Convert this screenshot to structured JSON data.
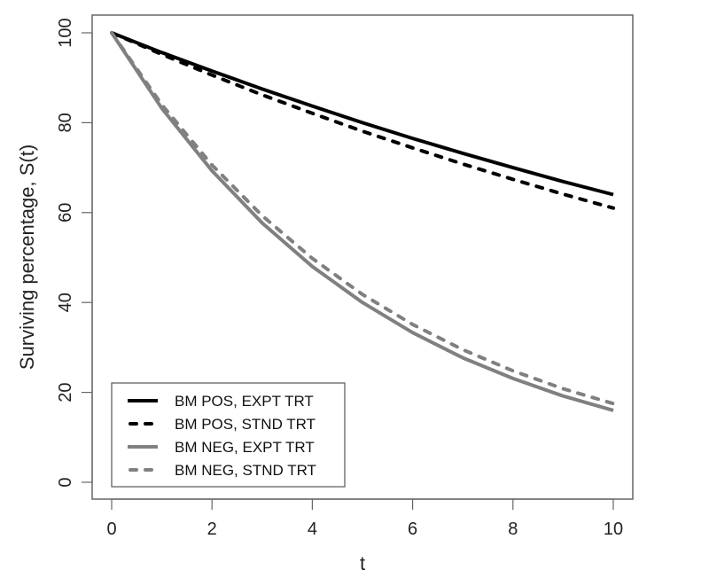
{
  "chart_data": {
    "type": "line",
    "title": "",
    "xlabel": "t",
    "ylabel": "Surviving percentage, S(t)",
    "xlim": [
      0,
      10
    ],
    "ylim": [
      0,
      100
    ],
    "x": [
      0,
      1,
      2,
      3,
      4,
      5,
      6,
      7,
      8,
      9,
      10
    ],
    "x_ticks": [
      0,
      2,
      4,
      6,
      8,
      10
    ],
    "y_ticks": [
      0,
      20,
      40,
      60,
      80,
      100
    ],
    "grid": false,
    "legend_position": "bottom-left",
    "series": [
      {
        "name": "BM POS, EXPT TRT",
        "color": "#000000",
        "dash": "solid",
        "values": [
          100,
          95.6,
          91.5,
          87.5,
          83.7,
          80.0,
          76.5,
          73.2,
          70.0,
          66.9,
          64.0
        ]
      },
      {
        "name": "BM POS, STND TRT",
        "color": "#000000",
        "dash": "dashed",
        "values": [
          100,
          95.2,
          90.6,
          86.2,
          82.1,
          78.1,
          74.4,
          70.8,
          67.4,
          64.1,
          61.0
        ]
      },
      {
        "name": "BM NEG, EXPT TRT",
        "color": "#808080",
        "dash": "solid",
        "values": [
          100,
          83.2,
          69.3,
          57.7,
          48.0,
          40.0,
          33.3,
          27.7,
          23.1,
          19.2,
          16.0
        ]
      },
      {
        "name": "BM NEG, STND TRT",
        "color": "#808080",
        "dash": "dashed",
        "values": [
          100,
          84.0,
          70.6,
          59.3,
          49.8,
          41.8,
          35.1,
          29.5,
          24.8,
          20.8,
          17.5
        ]
      }
    ]
  }
}
